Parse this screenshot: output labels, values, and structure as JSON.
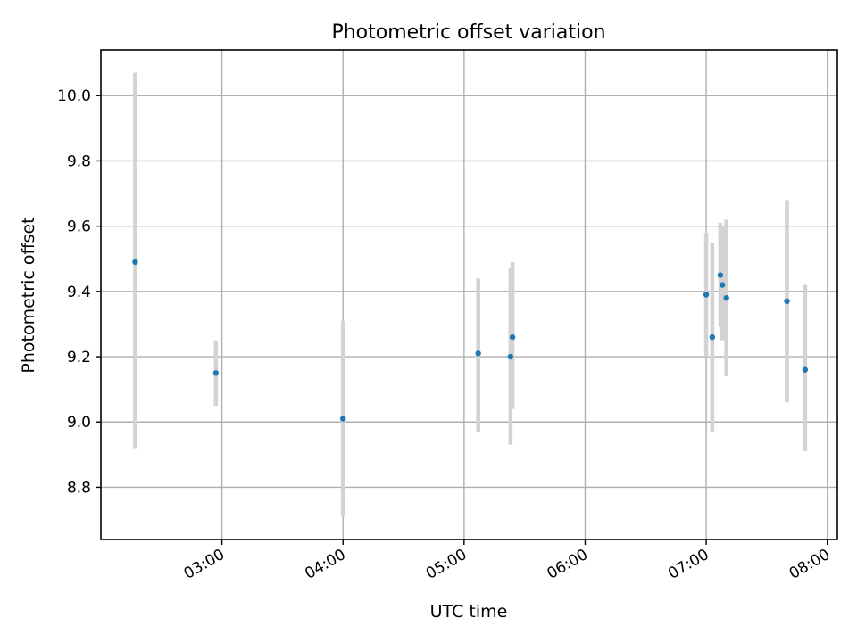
{
  "chart_data": {
    "type": "scatter",
    "title": "Photometric offset variation",
    "xlabel": "UTC time",
    "ylabel": "Photometric offset",
    "x_axis_kind": "time",
    "xlim": [
      "02:00",
      "08:05"
    ],
    "ylim": [
      8.64,
      10.14
    ],
    "x_ticks": [
      "03:00",
      "04:00",
      "05:00",
      "06:00",
      "07:00",
      "08:00"
    ],
    "y_ticks": [
      "8.8",
      "9.0",
      "9.2",
      "9.4",
      "9.6",
      "9.8",
      "10.0"
    ],
    "grid": true,
    "legend": "none",
    "colors": {
      "point": "#1f77b4",
      "errorbar": "#d3d3d3"
    },
    "series": [
      {
        "points": [
          {
            "x": "02:17",
            "y": 9.49,
            "ymin": 8.92,
            "ymax": 10.07
          },
          {
            "x": "02:57",
            "y": 9.15,
            "ymin": 9.05,
            "ymax": 9.25
          },
          {
            "x": "04:00",
            "y": 9.01,
            "ymin": 8.71,
            "ymax": 9.31
          },
          {
            "x": "05:07",
            "y": 9.21,
            "ymin": 8.97,
            "ymax": 9.44
          },
          {
            "x": "05:23",
            "y": 9.2,
            "ymin": 8.93,
            "ymax": 9.47
          },
          {
            "x": "05:24",
            "y": 9.26,
            "ymin": 9.04,
            "ymax": 9.49
          },
          {
            "x": "07:00",
            "y": 9.39,
            "ymin": 9.2,
            "ymax": 9.58
          },
          {
            "x": "07:03",
            "y": 9.26,
            "ymin": 8.97,
            "ymax": 9.55
          },
          {
            "x": "07:07",
            "y": 9.45,
            "ymin": 9.29,
            "ymax": 9.61
          },
          {
            "x": "07:08",
            "y": 9.42,
            "ymin": 9.25,
            "ymax": 9.6
          },
          {
            "x": "07:10",
            "y": 9.38,
            "ymin": 9.14,
            "ymax": 9.62
          },
          {
            "x": "07:40",
            "y": 9.37,
            "ymin": 9.06,
            "ymax": 9.68
          },
          {
            "x": "07:49",
            "y": 9.16,
            "ymin": 8.91,
            "ymax": 9.42
          }
        ]
      }
    ]
  }
}
